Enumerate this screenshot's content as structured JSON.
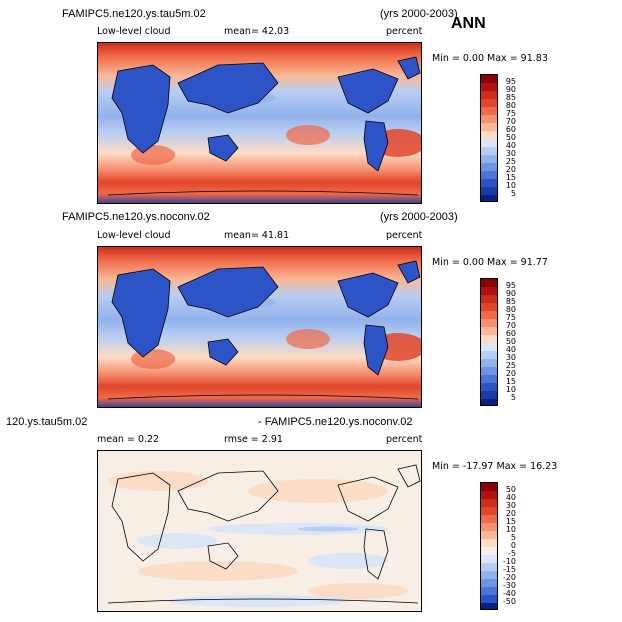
{
  "season": "ANN",
  "panels": [
    {
      "case_title": "FAMIPC5.ne120.ys.tau5m.02",
      "years": "(yrs 2000-2003)",
      "field_label": "Low-level cloud",
      "stat_label": "mean=  42.03",
      "units": "percent",
      "minmax": "Min =    0.00 Max =   91.83",
      "colorbar_ticks": [
        "95",
        "90",
        "85",
        "80",
        "75",
        "70",
        "60",
        "50",
        "40",
        "30",
        "25",
        "20",
        "15",
        "10",
        "5"
      ]
    },
    {
      "case_title": "FAMIPC5.ne120.ys.noconv.02",
      "years": "(yrs 2000-2003)",
      "field_label": "Low-level cloud",
      "stat_label": "mean=  41.81",
      "units": "percent",
      "minmax": "Min =    0.00 Max =   91.77",
      "colorbar_ticks": [
        "95",
        "90",
        "85",
        "80",
        "75",
        "70",
        "60",
        "50",
        "40",
        "30",
        "25",
        "20",
        "15",
        "10",
        "5"
      ]
    },
    {
      "case_title_left": "120.ys.tau5m.02",
      "case_title_right": "- FAMIPC5.ne120.ys.noconv.02",
      "mean_label": "mean =    0.22",
      "rmse_label": "rmse =    2.91",
      "units": "percent",
      "minmax": "Min = -17.97 Max =   16.23",
      "colorbar_ticks": [
        "50",
        "40",
        "30",
        "20",
        "15",
        "10",
        "5",
        "0",
        "-5",
        "-10",
        "-15",
        "-20",
        "-30",
        "-40",
        "-50"
      ]
    }
  ],
  "colors": {
    "abs_scale": [
      "#8b0000",
      "#b21010",
      "#cf2a1a",
      "#e2452a",
      "#f06a48",
      "#f79070",
      "#fab896",
      "#fcdcc4",
      "#dae6f8",
      "#b8cdf2",
      "#92b2ec",
      "#6f94e2",
      "#4c74d6",
      "#2c54c6",
      "#1a3aa6",
      "#0a1f80"
    ],
    "diff_scale": [
      "#8b0000",
      "#b21010",
      "#cf2a1a",
      "#e2452a",
      "#f06a48",
      "#f79070",
      "#fab896",
      "#fcdcc4",
      "#f7eee6",
      "#dae6f8",
      "#b8cdf2",
      "#92b2ec",
      "#6f94e2",
      "#4c74d6",
      "#2c54c6",
      "#0a1f80"
    ]
  }
}
